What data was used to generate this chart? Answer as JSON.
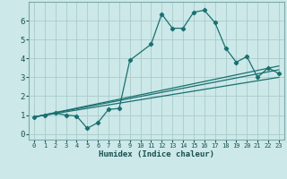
{
  "xlabel": "Humidex (Indice chaleur)",
  "bg_color": "#cce8e8",
  "grid_color": "#aacccc",
  "line_color": "#1a7070",
  "xlim": [
    -0.5,
    23.5
  ],
  "ylim": [
    -0.3,
    7.0
  ],
  "xticks": [
    0,
    1,
    2,
    3,
    4,
    5,
    6,
    7,
    8,
    9,
    10,
    11,
    12,
    13,
    14,
    15,
    16,
    17,
    18,
    19,
    20,
    21,
    22,
    23
  ],
  "yticks": [
    0,
    1,
    2,
    3,
    4,
    5,
    6
  ],
  "curve1_x": [
    0,
    1,
    2,
    3,
    4,
    5,
    6,
    7,
    8,
    9,
    11,
    12,
    13,
    14,
    15,
    16,
    17,
    18,
    19,
    20,
    21,
    22,
    23
  ],
  "curve1_y": [
    0.9,
    1.0,
    1.1,
    1.0,
    0.95,
    0.3,
    0.6,
    1.3,
    1.35,
    3.9,
    4.75,
    6.35,
    5.6,
    5.6,
    6.45,
    6.55,
    5.9,
    4.55,
    3.8,
    4.1,
    3.0,
    3.5,
    3.2
  ],
  "line1_x": [
    0,
    23
  ],
  "line1_y": [
    0.9,
    3.4
  ],
  "line2_x": [
    0,
    23
  ],
  "line2_y": [
    0.9,
    3.0
  ],
  "line3_x": [
    0,
    23
  ],
  "line3_y": [
    0.9,
    3.6
  ]
}
